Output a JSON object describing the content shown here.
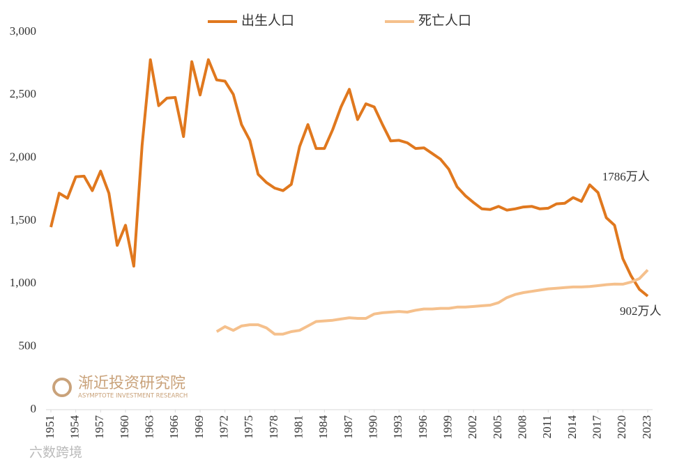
{
  "chart_data": {
    "type": "line",
    "x": [
      1951,
      1952,
      1953,
      1954,
      1955,
      1956,
      1957,
      1958,
      1959,
      1960,
      1961,
      1962,
      1963,
      1964,
      1965,
      1966,
      1967,
      1968,
      1969,
      1970,
      1971,
      1972,
      1973,
      1974,
      1975,
      1976,
      1977,
      1978,
      1979,
      1980,
      1981,
      1982,
      1983,
      1984,
      1985,
      1986,
      1987,
      1988,
      1989,
      1990,
      1991,
      1992,
      1993,
      1994,
      1995,
      1996,
      1997,
      1998,
      1999,
      2000,
      2001,
      2002,
      2003,
      2004,
      2005,
      2006,
      2007,
      2008,
      2009,
      2010,
      2011,
      2012,
      2013,
      2014,
      2015,
      2016,
      2017,
      2018,
      2019,
      2020,
      2021,
      2022,
      2023
    ],
    "series": [
      {
        "name": "出生人口",
        "color": "#e0781e",
        "values": [
          1450,
          1720,
          1680,
          1850,
          1855,
          1740,
          1895,
          1720,
          1305,
          1465,
          1140,
          2100,
          2780,
          2415,
          2475,
          2480,
          2170,
          2765,
          2500,
          2780,
          2620,
          2610,
          2505,
          2265,
          2140,
          1870,
          1805,
          1760,
          1740,
          1790,
          2090,
          2265,
          2075,
          2075,
          2225,
          2405,
          2545,
          2305,
          2430,
          2405,
          2265,
          2135,
          2140,
          2120,
          2075,
          2080,
          2035,
          1990,
          1910,
          1770,
          1700,
          1645,
          1595,
          1590,
          1615,
          1585,
          1595,
          1610,
          1615,
          1595,
          1600,
          1635,
          1640,
          1685,
          1655,
          1786,
          1725,
          1525,
          1465,
          1200,
          1062,
          956,
          902
        ]
      },
      {
        "name": "死亡人口",
        "color": "#f5c08c",
        "values": [
          null,
          null,
          null,
          null,
          null,
          null,
          null,
          null,
          null,
          null,
          null,
          null,
          null,
          null,
          null,
          null,
          null,
          null,
          null,
          null,
          620,
          660,
          630,
          665,
          675,
          675,
          650,
          600,
          600,
          620,
          630,
          665,
          700,
          705,
          710,
          720,
          730,
          725,
          725,
          760,
          770,
          775,
          780,
          775,
          790,
          800,
          800,
          805,
          805,
          815,
          815,
          820,
          825,
          830,
          850,
          890,
          915,
          930,
          940,
          950,
          960,
          965,
          970,
          975,
          975,
          978,
          985,
          993,
          998,
          997,
          1014,
          1041,
          1110
        ]
      }
    ],
    "xlim": [
      1951,
      2023
    ],
    "xticks": [
      1951,
      1954,
      1957,
      1960,
      1963,
      1966,
      1969,
      1972,
      1975,
      1978,
      1981,
      1984,
      1987,
      1990,
      1993,
      1996,
      1999,
      2002,
      2005,
      2008,
      2011,
      2014,
      2017,
      2020,
      2023
    ],
    "ylim": [
      0,
      3000
    ],
    "yticks": [
      0,
      500,
      {
        "value": 1000,
        "label": "1,000"
      },
      {
        "value": 1500,
        "label": "1,500"
      },
      {
        "value": 2000,
        "label": "2,000"
      },
      {
        "value": 2500,
        "label": "2,500"
      },
      {
        "value": 3000,
        "label": "3,000"
      }
    ],
    "grid": false,
    "legend": "top",
    "annotations": [
      {
        "text": "1786万人",
        "x": 2016,
        "y": 1786
      },
      {
        "text": "902万人",
        "x": 2023,
        "y": 902
      }
    ],
    "watermark": {
      "title": "渐近投资研究院",
      "subtitle": "ASYMPTOTE INVESTMENT RESEARCH",
      "footer": "六数跨境"
    }
  }
}
